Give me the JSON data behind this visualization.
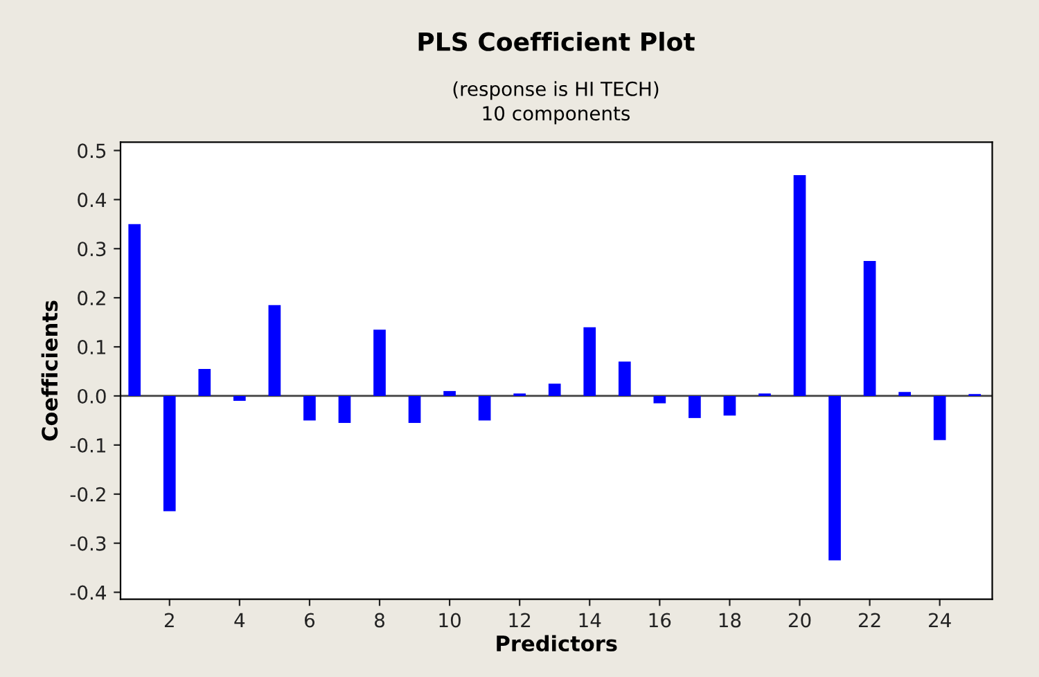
{
  "chart_data": {
    "type": "bar",
    "title": "PLS Coefficient Plot",
    "subtitle": "(response is HI TECH)\n10 components",
    "xlabel": "Predictors",
    "ylabel": "Coefficients",
    "x": [
      1,
      2,
      3,
      4,
      5,
      6,
      7,
      8,
      9,
      10,
      11,
      12,
      13,
      14,
      15,
      16,
      17,
      18,
      19,
      20,
      21,
      22,
      23,
      24,
      25
    ],
    "values": [
      0.35,
      -0.235,
      0.055,
      -0.01,
      0.185,
      -0.05,
      -0.055,
      0.135,
      -0.055,
      0.01,
      -0.05,
      0.005,
      0.025,
      0.14,
      0.07,
      -0.015,
      -0.045,
      -0.04,
      0.005,
      0.45,
      -0.335,
      0.275,
      0.008,
      -0.09,
      0.004
    ],
    "color": "#0000ff",
    "xlim": [
      0.6,
      25.5
    ],
    "xticks": [
      2,
      4,
      6,
      8,
      10,
      12,
      14,
      16,
      18,
      20,
      22,
      24
    ],
    "ylim": [
      -0.414,
      0.517
    ],
    "yticks": [
      {
        "value": -0.4,
        "label": "-0.4"
      },
      {
        "value": -0.3,
        "label": "-0.3"
      },
      {
        "value": -0.2,
        "label": "-0.2"
      },
      {
        "value": -0.1,
        "label": "-0.1"
      },
      {
        "value": 0.0,
        "label": "0.0"
      },
      {
        "value": 0.1,
        "label": "0.1"
      },
      {
        "value": 0.2,
        "label": "0.2"
      },
      {
        "value": 0.3,
        "label": "0.3"
      },
      {
        "value": 0.4,
        "label": "0.4"
      },
      {
        "value": 0.5,
        "label": "0.5"
      }
    ],
    "ref_lines": [
      {
        "axis": "y",
        "value": 0,
        "label": null,
        "color": "#404040"
      }
    ],
    "grid": false,
    "legend": false
  }
}
